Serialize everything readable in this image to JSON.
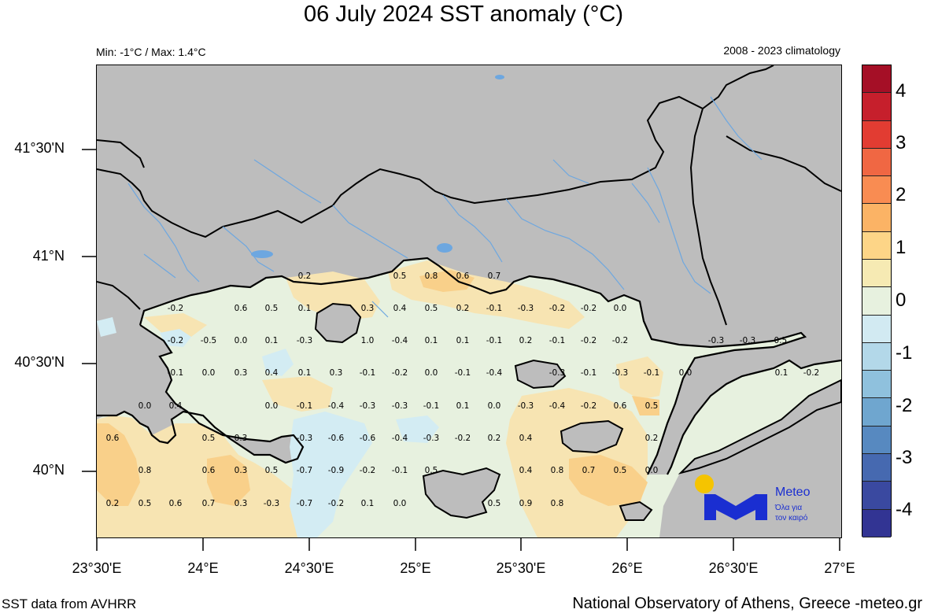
{
  "title": "06 July 2024 SST anomaly (°C)",
  "min_max": "Min: -1°C / Max: 1.4°C",
  "climatology": "2008 - 2023 climatology",
  "lat_labels": [
    "41°30'N",
    "41°N",
    "40°30'N",
    "40°N"
  ],
  "lon_labels": [
    "23°30'E",
    "24°E",
    "24°30'E",
    "25°E",
    "25°30'E",
    "26°E",
    "26°30'E",
    "27°E"
  ],
  "colorbar": {
    "labels": [
      "4",
      "3",
      "2",
      "1",
      "0",
      "-1",
      "-2",
      "-3",
      "-4"
    ],
    "colors": [
      "#a50f26",
      "#c61f2c",
      "#e23c32",
      "#f06743",
      "#f98c52",
      "#fbb365",
      "#fdd587",
      "#f6eab3",
      "#e7f1df",
      "#d2eaf2",
      "#b3d8e9",
      "#8fc1dd",
      "#6fa6cf",
      "#5789c0",
      "#4669b0",
      "#3a49a0",
      "#323493"
    ]
  },
  "colors": {
    "land": "#bdbdbd",
    "sea_neutral": "#e7f1df",
    "sea_warm": "#f7e4b2",
    "sea_warmer": "#f9d08a",
    "sea_cool": "#d3ecf3",
    "river": "#6da7e0",
    "border": "#000000"
  },
  "anomaly_values": [
    "0.2",
    "0.5",
    "0.8",
    "0.6",
    "0.7",
    "-0.2",
    "0.6",
    "0.5",
    "0.1",
    "0.3",
    "0.4",
    "0.5",
    "0.2",
    "-0.1",
    "-0.3",
    "-0.2",
    "-0.2",
    "0.0",
    "-0.2",
    "-0.5",
    "0.0",
    "0.1",
    "-0.3",
    "1.0",
    "-0.4",
    "0.1",
    "0.1",
    "-0.1",
    "0.2",
    "-0.1",
    "-0.2",
    "-0.2",
    "-0.3",
    "-0.3",
    "-0.5",
    "-0.1",
    "0.0",
    "0.3",
    "0.4",
    "0.1",
    "0.3",
    "-0.1",
    "-0.2",
    "0.0",
    "-0.1",
    "-0.4",
    "-0.3",
    "-0.1",
    "-0.3",
    "-0.1",
    "0.0",
    "0.1",
    "-0.2",
    "0.0",
    "0.4",
    "0.0",
    "-0.1",
    "-0.4",
    "-0.3",
    "-0.3",
    "-0.1",
    "0.1",
    "0.0",
    "-0.3",
    "-0.4",
    "-0.2",
    "0.6",
    "0.5",
    "0.6",
    "0.5",
    "0.3",
    "-0.3",
    "-0.6",
    "-0.6",
    "-0.4",
    "-0.3",
    "-0.2",
    "0.2",
    "0.4",
    "0.2",
    "0.8",
    "0.6",
    "0.3",
    "0.5",
    "-0.7",
    "-0.9",
    "-0.2",
    "-0.1",
    "0.5",
    "0.4",
    "0.8",
    "0.7",
    "0.5",
    "0.0",
    "0.2",
    "0.5",
    "0.6",
    "0.7",
    "0.3",
    "-0.3",
    "-0.7",
    "-0.2",
    "0.1",
    "0.0",
    "0.5",
    "0.9",
    "0.8"
  ],
  "logo": {
    "name": "Meteo",
    "tagline_1": "Όλα για",
    "tagline_2": "τον καιρό"
  },
  "source": "SST data from AVHRR",
  "credit": "National Observatory of Athens, Greece -meteo.gr"
}
